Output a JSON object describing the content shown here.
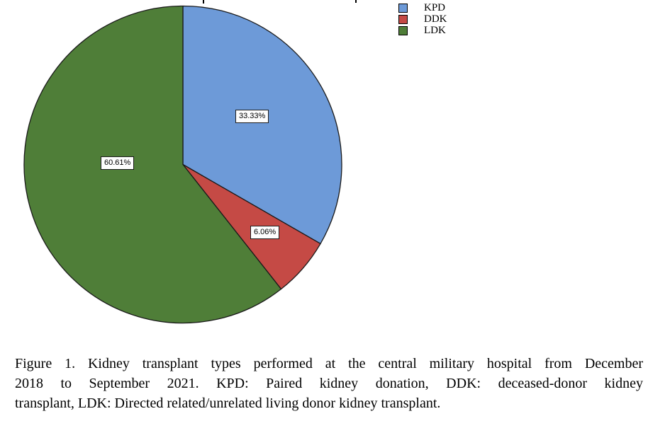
{
  "chart_data": {
    "type": "pie",
    "title": "",
    "direction": "clockwise",
    "start_angle_deg": 0,
    "border_color": "#1a1a1a",
    "legend_position": "top-right",
    "slices": [
      {
        "name": "KPD",
        "value": 33.33,
        "pct_label": "33.33%",
        "color": "#6d9ad8"
      },
      {
        "name": "DDK",
        "value": 6.06,
        "pct_label": "6.06%",
        "color": "#c54a45"
      },
      {
        "name": "LDK",
        "value": 60.61,
        "pct_label": "60.61%",
        "color": "#4f7e38"
      }
    ]
  },
  "caption": {
    "lines": [
      "Figure 1. Kidney transplant types performed at the central military hospital from December",
      "2018 to September 2021. KPD: Paired kidney donation, DDK: deceased-donor kidney",
      "transplant, LDK: Directed related/unrelated living donor kidney transplant."
    ]
  }
}
